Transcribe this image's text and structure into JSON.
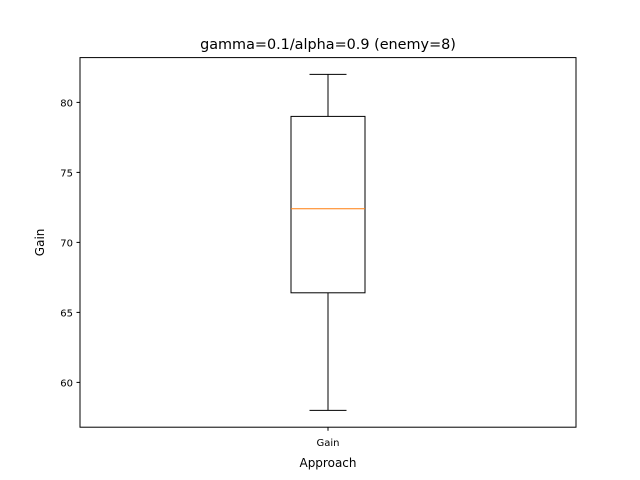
{
  "chart_data": {
    "type": "boxplot",
    "title": "gamma=0.1/alpha=0.9 (enemy=8)",
    "xlabel": "Approach",
    "ylabel": "Gain",
    "categories": [
      "Gain"
    ],
    "ylim": [
      56.8,
      83.2
    ],
    "yticks": [
      60,
      65,
      70,
      75,
      80
    ],
    "grid": false,
    "boxes": [
      {
        "category": "Gain",
        "whisker_low": 58.0,
        "q1": 66.4,
        "median": 72.4,
        "q3": 79.0,
        "whisker_high": 82.0
      }
    ],
    "colors": {
      "box": "#000000",
      "median": "#ff7f0e",
      "axes": "#000000"
    }
  }
}
